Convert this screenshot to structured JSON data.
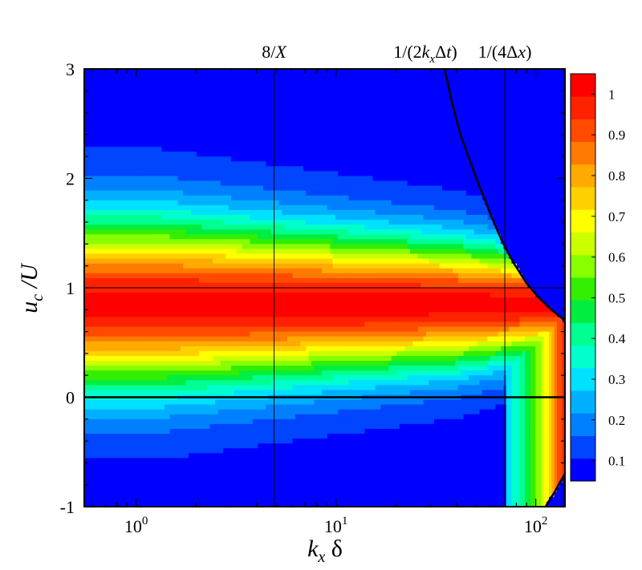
{
  "chart_data": {
    "type": "heatmap",
    "title": "",
    "xlabel": {
      "main": "k",
      "sub": "x",
      "suffix": " δ"
    },
    "ylabel": {
      "main": "u",
      "sub": "c",
      "suffix": " /U"
    },
    "x_scale": "log",
    "xlim": [
      0.55,
      140
    ],
    "ylim": [
      -1,
      3
    ],
    "x_ticks": [
      {
        "value": 1,
        "base": "10",
        "exp": "0"
      },
      {
        "value": 10,
        "base": "10",
        "exp": "1"
      },
      {
        "value": 100,
        "base": "10",
        "exp": "2"
      }
    ],
    "y_ticks": [
      {
        "value": 3,
        "label": "3"
      },
      {
        "value": 2,
        "label": "2"
      },
      {
        "value": 1,
        "label": "1"
      },
      {
        "value": 0,
        "label": "0"
      },
      {
        "value": -1,
        "label": "-1"
      }
    ],
    "annotations": [
      {
        "x": 4.9,
        "parts": [
          {
            "t": "8/"
          },
          {
            "t": "X",
            "italic": true
          }
        ]
      },
      {
        "x": 28,
        "parts": [
          {
            "t": "1/(2"
          },
          {
            "t": "k",
            "italic": true
          },
          {
            "t": "x",
            "italic": true,
            "sub": true
          },
          {
            "t": "Δ"
          },
          {
            "t": "t",
            "italic": true
          },
          {
            "t": ")"
          }
        ]
      },
      {
        "x": 70,
        "parts": [
          {
            "t": "1/(4Δ"
          },
          {
            "t": "x",
            "italic": true
          },
          {
            "t": ")"
          }
        ]
      }
    ],
    "reference_lines": {
      "vertical_x": [
        4.9,
        70
      ],
      "horizontal_y": [
        1,
        0
      ]
    },
    "resolution_limit_curve": [
      [
        35,
        3
      ],
      [
        38,
        2.7
      ],
      [
        42,
        2.4
      ],
      [
        47,
        2.15
      ],
      [
        53,
        1.9
      ],
      [
        60,
        1.65
      ],
      [
        68,
        1.42
      ],
      [
        78,
        1.22
      ],
      [
        90,
        1.04
      ],
      [
        105,
        0.9
      ],
      [
        120,
        0.8
      ],
      [
        140,
        0.7
      ]
    ],
    "lower_limit_curve": [
      [
        140,
        -0.7
      ],
      [
        132,
        -0.78
      ],
      [
        125,
        -0.86
      ],
      [
        118,
        -0.93
      ],
      [
        112,
        -1.0
      ]
    ],
    "colorbar": {
      "levels": [
        0.1,
        0.2,
        0.3,
        0.4,
        0.5,
        0.6,
        0.7,
        0.8,
        0.9,
        1
      ],
      "tick_labels": [
        "1",
        "0.9",
        "0.8",
        "0.7",
        "0.6",
        "0.5",
        "0.4",
        "0.3",
        "0.2",
        "0.1"
      ],
      "min": 0.05,
      "max": 1.05,
      "colors": [
        "#0000ff",
        "#0045ff",
        "#0080ff",
        "#00b0ff",
        "#00e0ff",
        "#00ffcc",
        "#00ff90",
        "#00ee40",
        "#33ee00",
        "#88ff00",
        "#ccff00",
        "#ffff00",
        "#ffd000",
        "#ffaa00",
        "#ff7a00",
        "#ff4a00",
        "#ff2200",
        "#ff0000"
      ]
    },
    "model": {
      "peak_center": 0.85,
      "low_k_width": 0.75,
      "mid_width": 0.55,
      "high_k_width": 0.4,
      "blank_region_value": 0.1
    }
  }
}
